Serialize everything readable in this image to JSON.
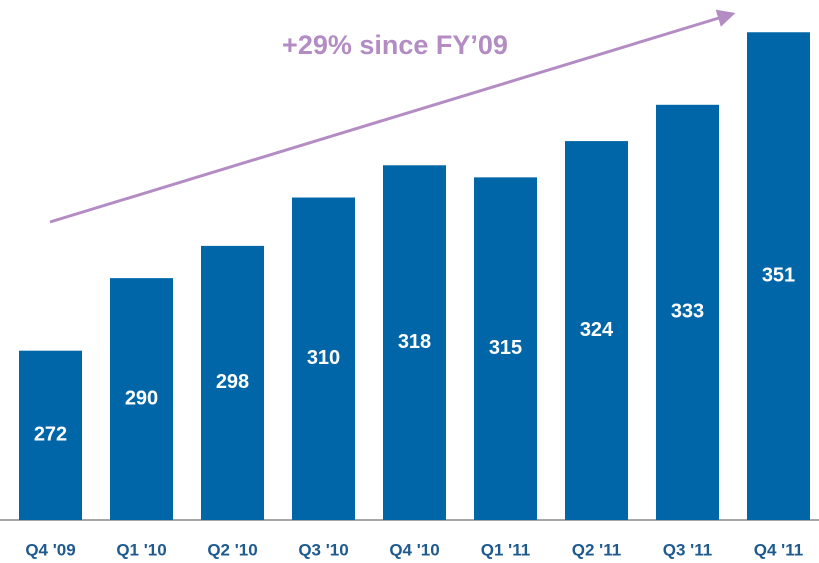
{
  "chart_data": {
    "type": "bar",
    "annotation": "+29% since FY’09",
    "categories": [
      "Q4 '09",
      "Q1 '10",
      "Q2 '10",
      "Q3 '10",
      "Q4 '10",
      "Q1 '11",
      "Q2 '11",
      "Q3 '11",
      "Q4 '11"
    ],
    "values": [
      272,
      290,
      298,
      310,
      318,
      315,
      324,
      333,
      351
    ],
    "color": "#0066a8",
    "ylim": [
      230,
      359
    ]
  }
}
